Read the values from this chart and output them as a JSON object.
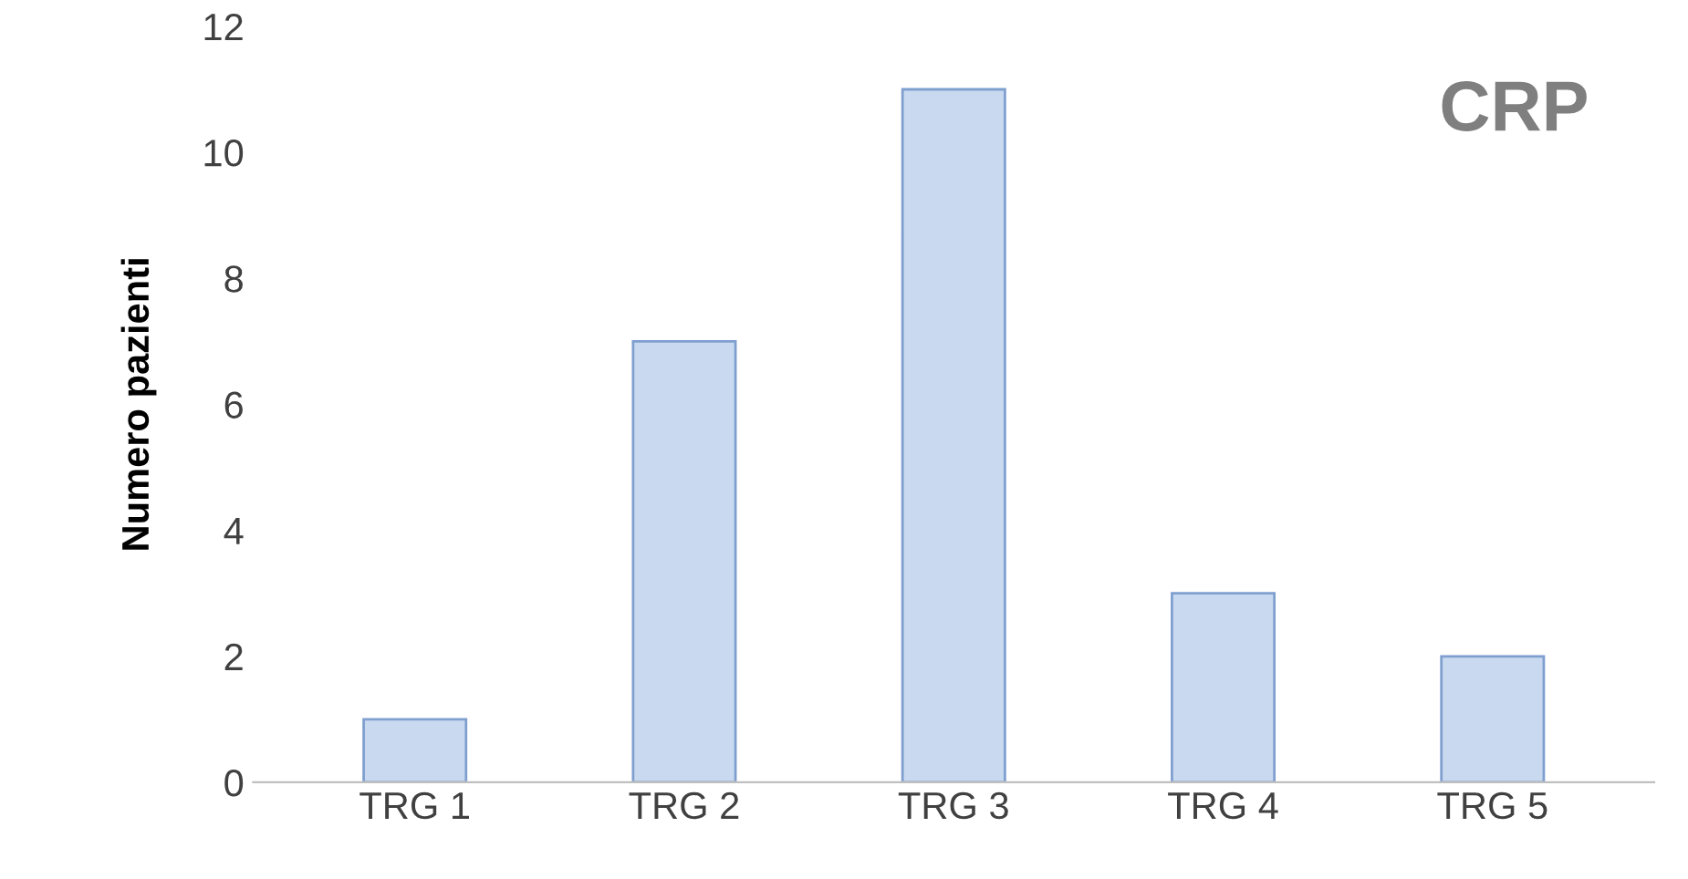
{
  "chart_data": {
    "type": "bar",
    "title": "CRP",
    "ylabel": "Numero pazienti",
    "categories": [
      "TRG 1",
      "TRG 2",
      "TRG 3",
      "TRG 4",
      "TRG 5"
    ],
    "values": [
      1,
      7,
      11,
      3,
      2
    ],
    "color": "#c9daf0",
    "ylim": [
      0,
      12
    ],
    "yticks": [
      0,
      2,
      4,
      6,
      8,
      10,
      12
    ],
    "grid": false,
    "legend": false
  }
}
